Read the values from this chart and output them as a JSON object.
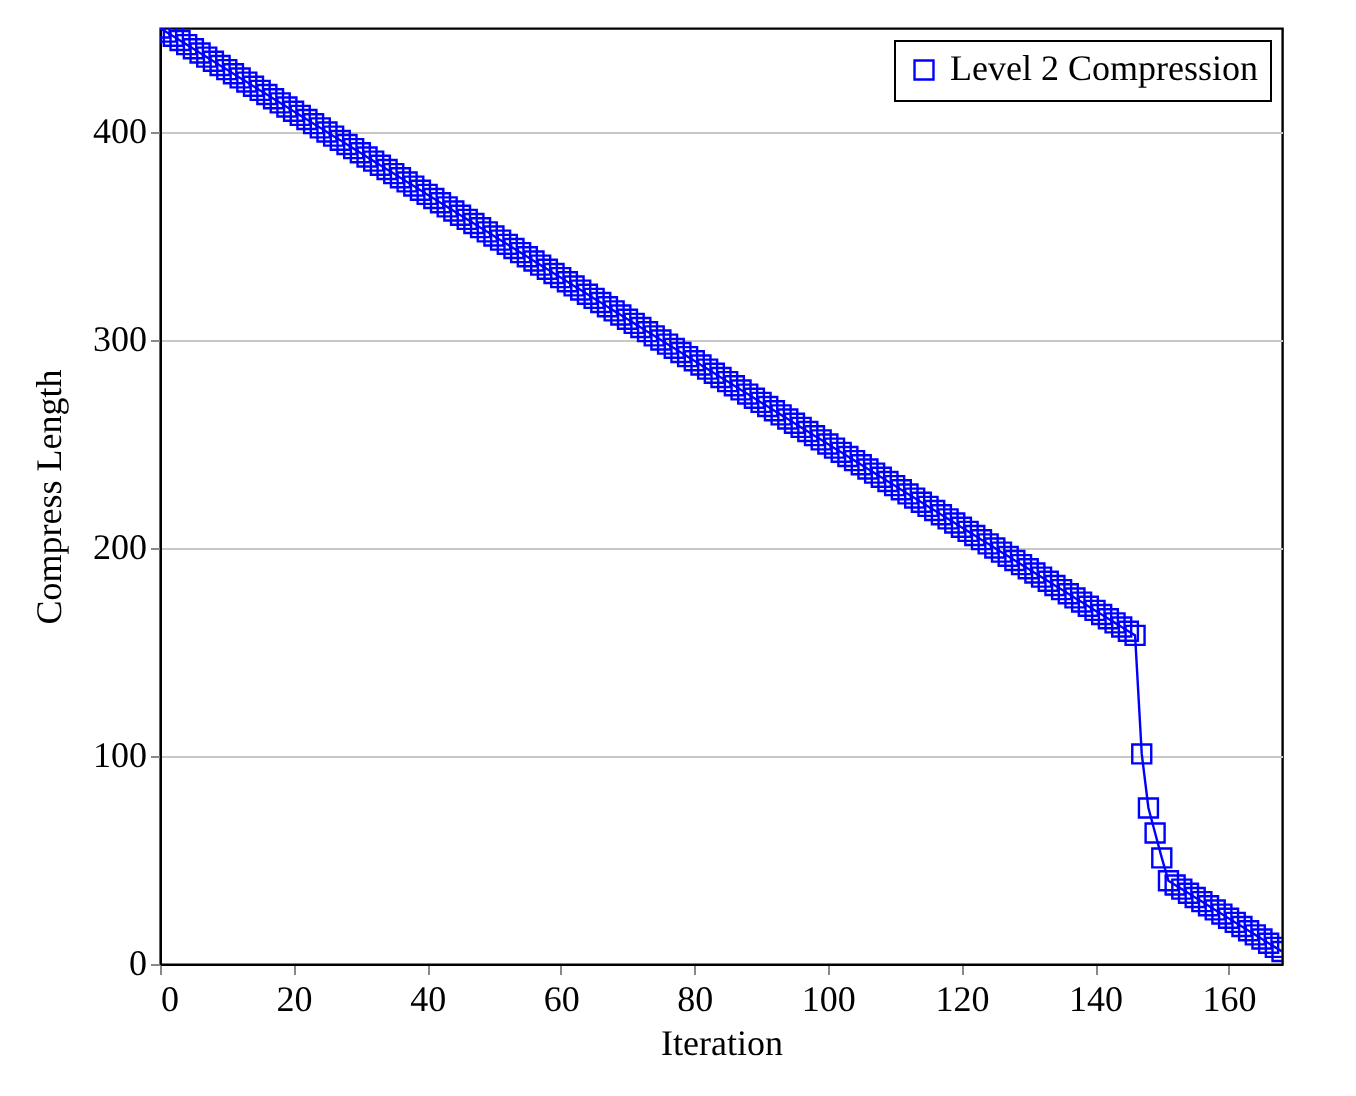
{
  "chart_data": {
    "type": "line",
    "xlabel": "Iteration",
    "ylabel": "Compress Length",
    "x": [
      0,
      1,
      2,
      3,
      4,
      5,
      6,
      7,
      8,
      9,
      10,
      11,
      12,
      13,
      14,
      15,
      16,
      17,
      18,
      19,
      20,
      21,
      22,
      23,
      24,
      25,
      26,
      27,
      28,
      29,
      30,
      31,
      32,
      33,
      34,
      35,
      36,
      37,
      38,
      39,
      40,
      41,
      42,
      43,
      44,
      45,
      46,
      47,
      48,
      49,
      50,
      51,
      52,
      53,
      54,
      55,
      56,
      57,
      58,
      59,
      60,
      61,
      62,
      63,
      64,
      65,
      66,
      67,
      68,
      69,
      70,
      71,
      72,
      73,
      74,
      75,
      76,
      77,
      78,
      79,
      80,
      81,
      82,
      83,
      84,
      85,
      86,
      87,
      88,
      89,
      90,
      91,
      92,
      93,
      94,
      95,
      96,
      97,
      98,
      99,
      100,
      101,
      102,
      103,
      104,
      105,
      106,
      107,
      108,
      109,
      110,
      111,
      112,
      113,
      114,
      115,
      116,
      117,
      118,
      119,
      120,
      121,
      122,
      123,
      124,
      125,
      126,
      127,
      128,
      129,
      130,
      131,
      132,
      133,
      134,
      135,
      136,
      137,
      138,
      139,
      140,
      141,
      142,
      143,
      144,
      145,
      146,
      147,
      148,
      149,
      150,
      151,
      152,
      153,
      154,
      155,
      156,
      157,
      158,
      159,
      160,
      161,
      162,
      163,
      164,
      165,
      166,
      167,
      168
    ],
    "series": [
      {
        "name": "Level 2 Compression",
        "color": "#0000ff",
        "values": [
          450,
          448,
          446,
          444,
          442,
          440,
          438,
          436,
          434,
          432,
          430,
          428,
          426,
          424,
          422,
          420,
          418,
          416,
          414,
          412,
          410,
          408,
          406,
          404,
          402,
          400,
          398,
          396,
          394,
          392,
          390,
          388,
          386,
          384,
          382,
          380,
          378,
          376,
          374,
          372,
          370,
          368,
          366,
          364,
          362,
          360,
          358,
          356,
          354,
          352,
          350,
          348,
          346,
          344,
          342,
          340,
          338,
          336,
          334,
          332,
          330,
          328,
          326,
          324,
          322,
          320,
          318,
          316,
          314,
          312,
          310,
          308,
          306,
          304,
          302,
          300,
          298,
          296,
          294,
          292,
          290,
          288,
          286,
          284,
          282,
          280,
          278,
          276,
          274,
          272,
          270,
          268,
          266,
          264,
          262,
          260,
          258,
          256,
          254,
          252,
          250,
          248,
          246,
          244,
          242,
          240,
          238,
          236,
          234,
          232,
          230,
          228,
          226,
          224,
          222,
          220,
          218,
          216,
          214,
          212,
          210,
          208,
          206,
          204,
          202,
          200,
          198,
          196,
          194,
          192,
          190,
          188,
          186,
          184,
          182,
          180,
          178,
          176,
          174,
          172,
          170,
          168,
          166,
          164,
          162,
          160,
          158,
          101,
          75,
          63,
          51,
          40,
          38,
          36,
          34,
          32,
          30,
          28,
          26,
          24,
          22,
          20,
          18,
          16,
          14,
          12,
          10,
          8,
          6
        ]
      }
    ],
    "xlim": [
      0,
      168
    ],
    "ylim": [
      0,
      450
    ],
    "xticks": [
      0,
      20,
      40,
      60,
      80,
      100,
      120,
      140,
      160
    ],
    "yticks": [
      0,
      100,
      200,
      300,
      400
    ],
    "grid": "y",
    "legend": "top right",
    "marker": "square",
    "line_style": "solid"
  }
}
